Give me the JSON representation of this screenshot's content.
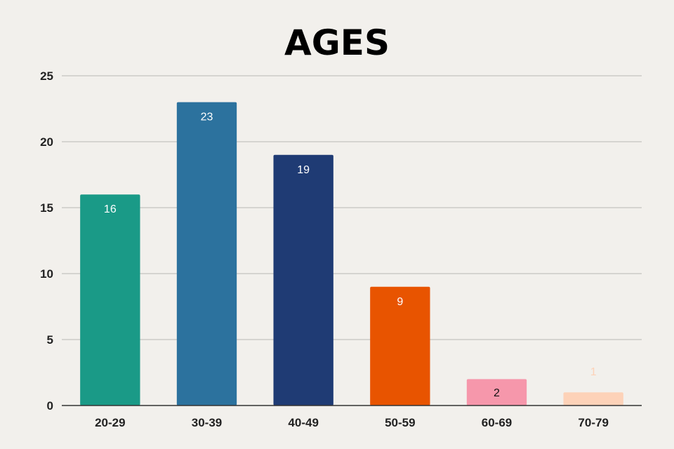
{
  "chart_data": {
    "type": "bar",
    "title": "AGES",
    "xlabel": "",
    "ylabel": "",
    "categories": [
      "20-29",
      "30-39",
      "40-49",
      "50-59",
      "60-69",
      "70-79"
    ],
    "values": [
      16,
      23,
      19,
      9,
      2,
      1
    ],
    "data_labels": [
      "16",
      "23",
      "19",
      "9",
      "2",
      "1"
    ],
    "bar_colors": [
      "#1a9a87",
      "#2c729e",
      "#1f3b74",
      "#e85400",
      "#f697ab",
      "#fdd2b8"
    ],
    "label_colors": [
      "#ffffff",
      "#ffffff",
      "#ffffff",
      "#ffffff",
      "#111111",
      "#fdd2b8"
    ],
    "ylim": [
      0,
      25
    ],
    "yticks": [
      "0",
      "5",
      "10",
      "15",
      "20",
      "25"
    ],
    "grid": true,
    "legend": "none"
  }
}
